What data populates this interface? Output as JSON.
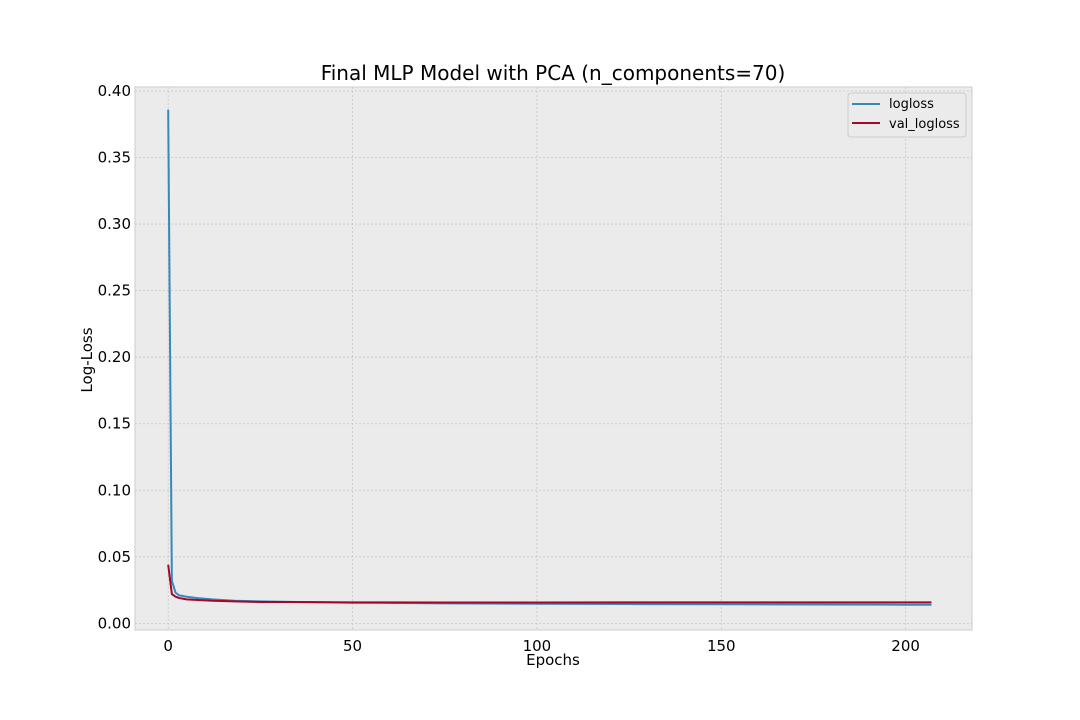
{
  "chart_data": {
    "type": "line",
    "title": "Final MLP Model with PCA (n_components=70)",
    "xlabel": "Epochs",
    "ylabel": "Log-Loss",
    "xlim": [
      -9,
      218
    ],
    "ylim": [
      -0.005,
      0.403
    ],
    "xticks": [
      0,
      50,
      100,
      150,
      200
    ],
    "xtick_labels": [
      "0",
      "50",
      "100",
      "150",
      "200"
    ],
    "yticks": [
      0.0,
      0.05,
      0.1,
      0.15,
      0.2,
      0.25,
      0.3,
      0.35,
      0.4
    ],
    "ytick_labels": [
      "0.00",
      "0.05",
      "0.10",
      "0.15",
      "0.20",
      "0.25",
      "0.30",
      "0.35",
      "0.40"
    ],
    "grid": true,
    "legend_position": "top-right",
    "series": [
      {
        "name": "logloss",
        "color": "#348ABD",
        "x": [
          0,
          1,
          2,
          3,
          5,
          8,
          12,
          18,
          25,
          35,
          50,
          75,
          100,
          125,
          150,
          175,
          200,
          207
        ],
        "y": [
          0.386,
          0.032,
          0.023,
          0.021,
          0.02,
          0.019,
          0.018,
          0.017,
          0.0165,
          0.016,
          0.0155,
          0.015,
          0.0147,
          0.0145,
          0.0143,
          0.0142,
          0.014,
          0.014
        ]
      },
      {
        "name": "val_logloss",
        "color": "#A60628",
        "x": [
          0,
          1,
          2,
          3,
          5,
          8,
          12,
          18,
          25,
          35,
          50,
          75,
          100,
          125,
          150,
          175,
          200,
          207
        ],
        "y": [
          0.044,
          0.022,
          0.02,
          0.019,
          0.018,
          0.0175,
          0.017,
          0.0165,
          0.016,
          0.016,
          0.0158,
          0.0157,
          0.0157,
          0.0158,
          0.0158,
          0.0158,
          0.0158,
          0.0158
        ]
      }
    ]
  },
  "colors": {
    "plot_background": "#EBEBEB",
    "grid": "#C8C8C8",
    "frame": "#CCCCCC"
  }
}
